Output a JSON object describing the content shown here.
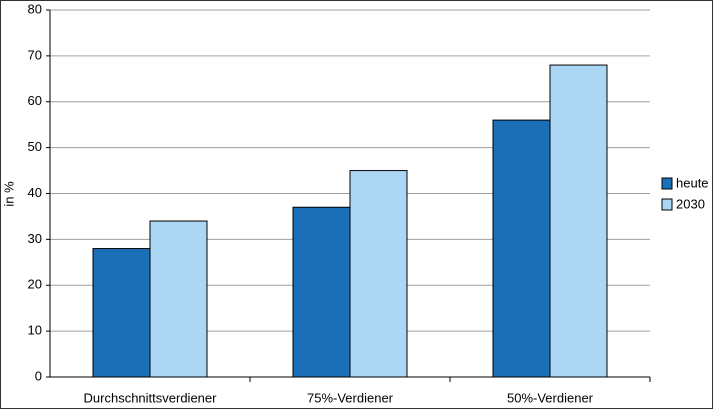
{
  "chart_data": {
    "type": "bar",
    "y_label": "in %",
    "categories": [
      "Durchschnittsverdiener",
      "75%-Verdiener",
      "50%-Verdiener"
    ],
    "series": [
      {
        "name": "heute",
        "color": "#1b6fb6",
        "values": [
          28,
          37,
          56
        ]
      },
      {
        "name": "2030",
        "color": "#acd7f4",
        "values": [
          34,
          45,
          68
        ]
      }
    ],
    "ylim": [
      0,
      80
    ],
    "yticks": [
      0,
      10,
      20,
      30,
      40,
      50,
      60,
      70,
      80
    ],
    "grid": true,
    "legend": "right"
  }
}
